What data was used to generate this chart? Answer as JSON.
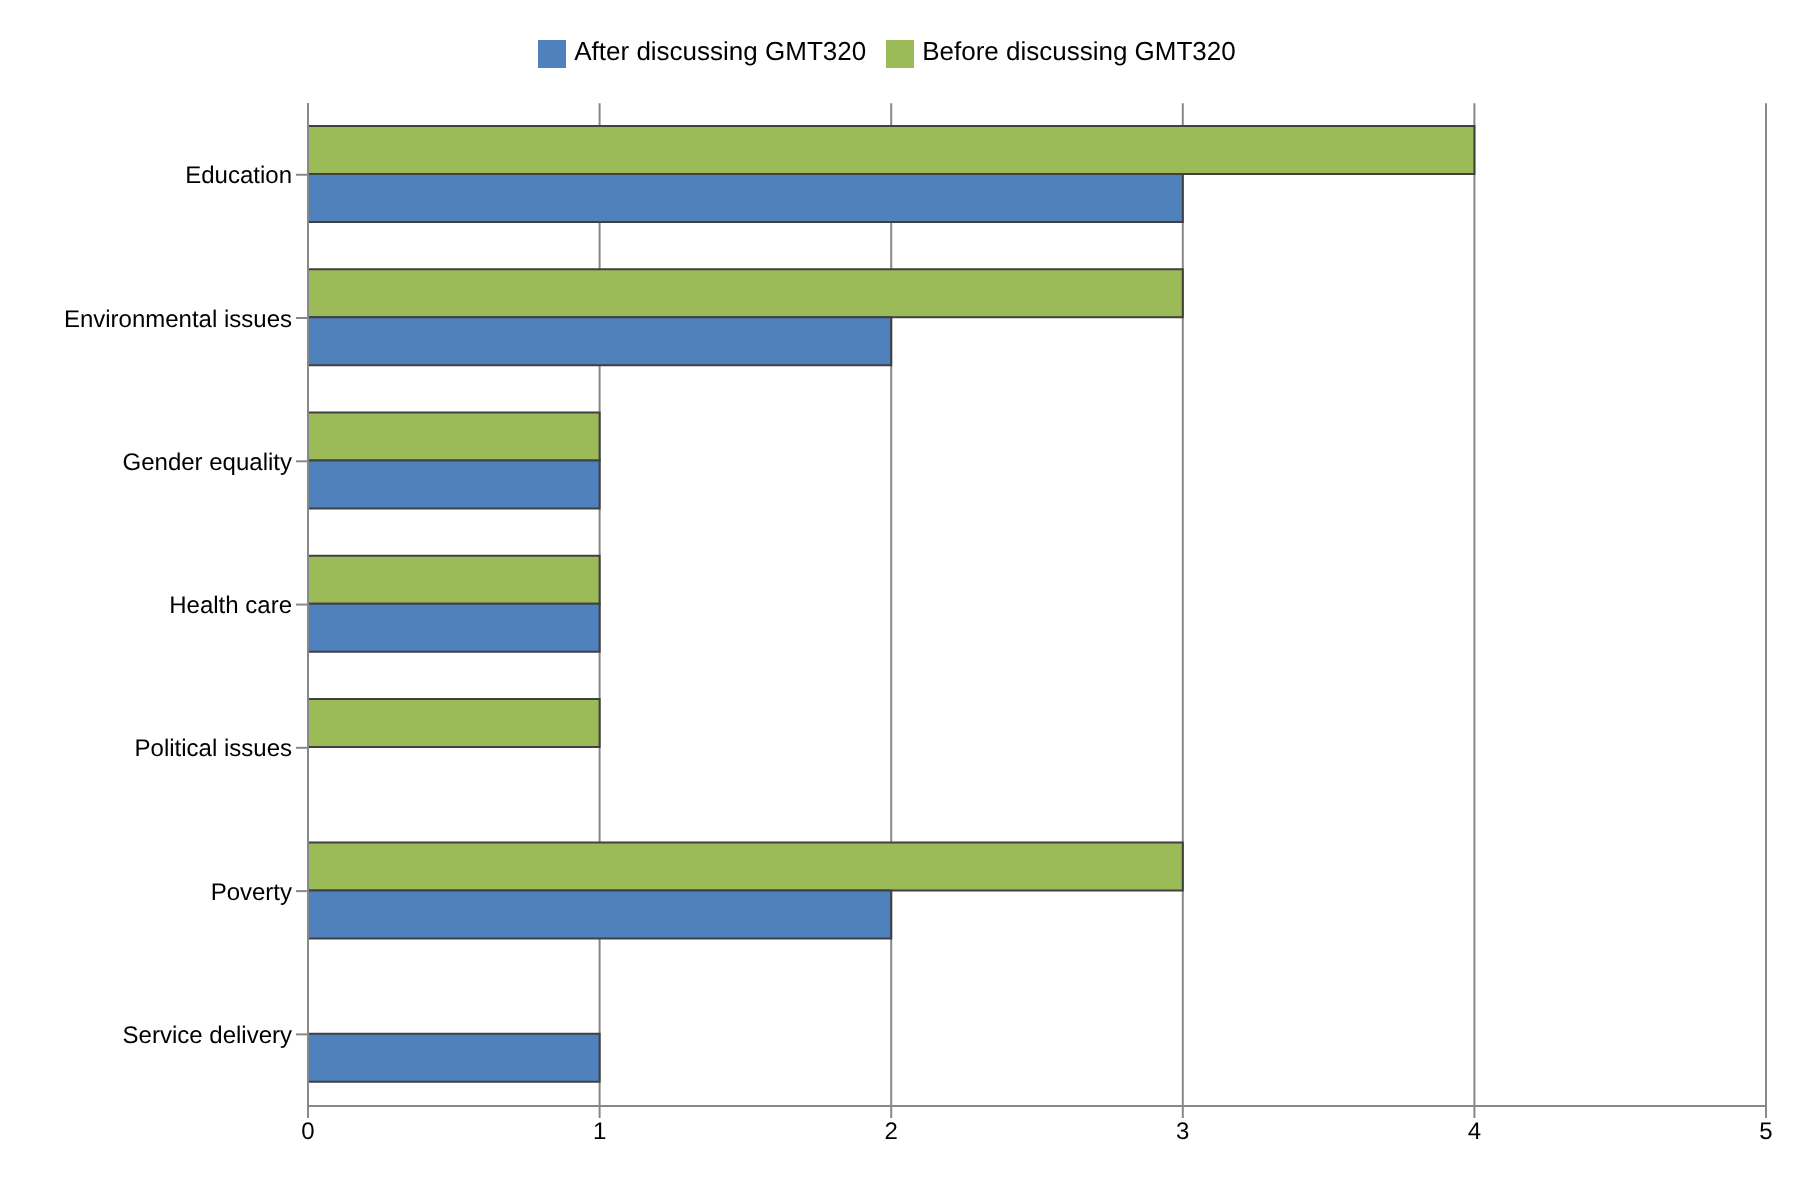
{
  "chart_data": {
    "type": "bar",
    "orientation": "horizontal",
    "categories": [
      "Education",
      "Environmental issues",
      "Gender equality",
      "Health care",
      "Political issues",
      "Poverty",
      "Service delivery"
    ],
    "series": [
      {
        "name": "Before discussing GMT320",
        "color": "#9bbb59",
        "values": [
          4,
          3,
          1,
          1,
          1,
          3,
          0
        ]
      },
      {
        "name": "After discussing GMT320",
        "color": "#4f81bd",
        "values": [
          3,
          2,
          1,
          1,
          0,
          2,
          1
        ]
      }
    ],
    "xlim": [
      0,
      5
    ],
    "xticks": [
      0,
      1,
      2,
      3,
      4,
      5
    ],
    "grid": "x",
    "legend": "top"
  }
}
